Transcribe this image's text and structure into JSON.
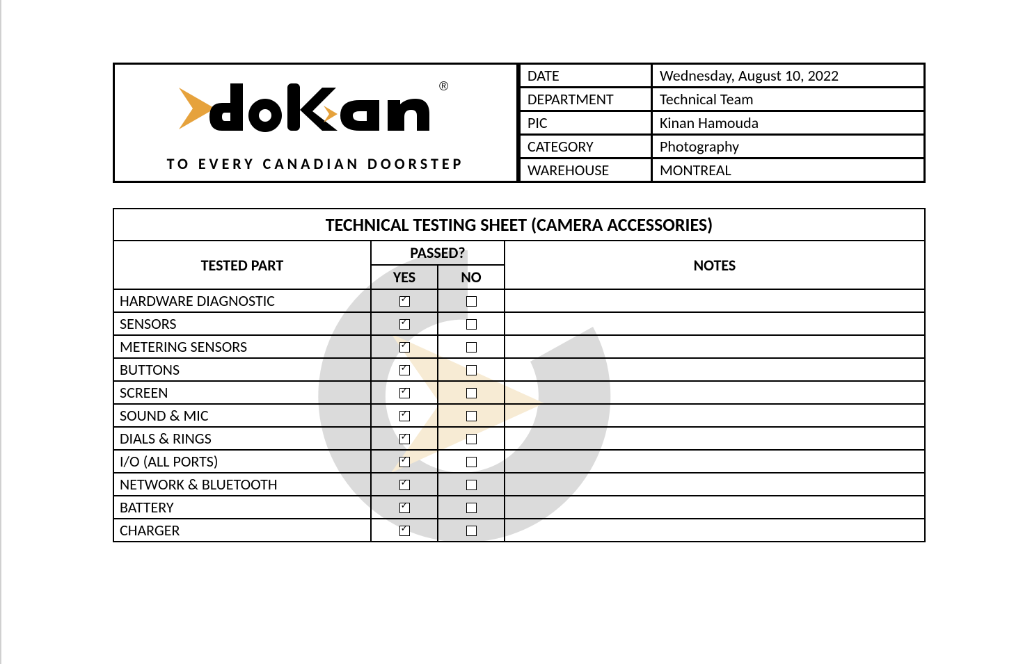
{
  "logo": {
    "brand_name": "dokan",
    "registered_mark": "®",
    "tagline": "TO EVERY CANADIAN DOORSTEP",
    "arrow_color": "#e6a23c",
    "text_color": "#000000"
  },
  "meta": {
    "rows": [
      {
        "key": "DATE",
        "value": "Wednesday, August 10, 2022"
      },
      {
        "key": "DEPARTMENT",
        "value": "Technical Team"
      },
      {
        "key": "PIC",
        "value": "Kinan Hamouda"
      },
      {
        "key": "CATEGORY",
        "value": "Photography"
      },
      {
        "key": "WAREHOUSE",
        "value": "MONTREAL"
      }
    ]
  },
  "sheet": {
    "title": "TECHNICAL TESTING SHEET (CAMERA ACCESSORIES)",
    "headers": {
      "tested_part": "TESTED PART",
      "passed": "PASSED?",
      "yes": "YES",
      "no": "NO",
      "notes": "NOTES"
    },
    "rows": [
      {
        "part": "HARDWARE DIAGNOSTIC",
        "yes": true,
        "no": false,
        "notes": ""
      },
      {
        "part": "SENSORS",
        "yes": true,
        "no": false,
        "notes": ""
      },
      {
        "part": "METERING SENSORS",
        "yes": true,
        "no": false,
        "notes": ""
      },
      {
        "part": "BUTTONS",
        "yes": true,
        "no": false,
        "notes": ""
      },
      {
        "part": "SCREEN",
        "yes": true,
        "no": false,
        "notes": ""
      },
      {
        "part": "SOUND & MIC",
        "yes": true,
        "no": false,
        "notes": ""
      },
      {
        "part": "DIALS & RINGS",
        "yes": true,
        "no": false,
        "notes": ""
      },
      {
        "part": "I/O (ALL PORTS)",
        "yes": true,
        "no": false,
        "notes": ""
      },
      {
        "part": "NETWORK & BLUETOOTH",
        "yes": true,
        "no": false,
        "notes": ""
      },
      {
        "part": "BATTERY",
        "yes": true,
        "no": false,
        "notes": ""
      },
      {
        "part": "CHARGER",
        "yes": true,
        "no": false,
        "notes": ""
      }
    ]
  },
  "watermark": {
    "circle_color": "#9b9b9b",
    "arrow_color": "#eac887"
  },
  "style": {
    "border_color": "#000000",
    "background_color": "#ffffff",
    "font_family": "Calibri, Arial, sans-serif",
    "title_fontsize": 26,
    "header_fontsize": 22,
    "cell_fontsize": 22,
    "tagline_fontsize": 22,
    "tagline_letter_spacing": 5
  }
}
